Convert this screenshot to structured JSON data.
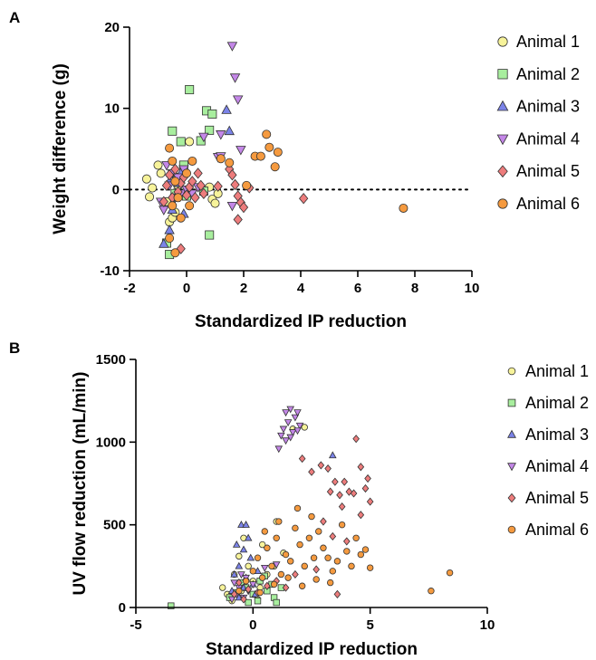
{
  "chart_data": [
    {
      "panel": "A",
      "type": "scatter",
      "xlabel": "Standardized IP reduction",
      "ylabel": "Weight difference (g)",
      "xlim": [
        -2,
        10
      ],
      "ylim": [
        -10,
        20
      ],
      "xticks": [
        "-2",
        "0",
        "2",
        "4",
        "6",
        "8",
        "10"
      ],
      "yticks": [
        "-10",
        "0",
        "10",
        "20"
      ],
      "reference_line": {
        "y": 0,
        "style": "dotted"
      },
      "legend_position": "right",
      "series": [
        {
          "name": "Animal 1",
          "marker": "circle",
          "color": "#f7f39a",
          "points": [
            [
              -1.4,
              1.3
            ],
            [
              -1.3,
              -0.9
            ],
            [
              -1.2,
              0.2
            ],
            [
              -1.0,
              3.0
            ],
            [
              -0.9,
              2.0
            ],
            [
              -0.7,
              -1.5
            ],
            [
              -0.6,
              -4.0
            ],
            [
              -0.5,
              -3.5
            ],
            [
              -0.4,
              -2.8
            ],
            [
              -0.3,
              0.5
            ],
            [
              0.1,
              5.9
            ],
            [
              0.8,
              0.3
            ],
            [
              0.9,
              -1.2
            ],
            [
              1.0,
              -1.7
            ],
            [
              1.1,
              -0.5
            ]
          ]
        },
        {
          "name": "Animal 2",
          "marker": "square",
          "color": "#a8ee9e",
          "points": [
            [
              -0.5,
              7.2
            ],
            [
              -0.2,
              5.9
            ],
            [
              -0.1,
              3.0
            ],
            [
              0.1,
              12.3
            ],
            [
              0.5,
              6.0
            ],
            [
              0.6,
              -0.2
            ],
            [
              0.7,
              9.7
            ],
            [
              0.8,
              7.3
            ],
            [
              0.9,
              9.3
            ],
            [
              0.8,
              -5.6
            ],
            [
              -0.6,
              -8.0
            ],
            [
              -0.7,
              -6.6
            ],
            [
              -0.4,
              -0.5
            ],
            [
              0.0,
              -0.8
            ],
            [
              -0.3,
              1.5
            ]
          ]
        },
        {
          "name": "Animal 3",
          "marker": "triangle-up",
          "color": "#7b83e8",
          "points": [
            [
              -0.8,
              -6.7
            ],
            [
              -0.6,
              -5.0
            ],
            [
              -0.5,
              -2.5
            ],
            [
              -0.4,
              -1.0
            ],
            [
              -0.3,
              0.8
            ],
            [
              -0.2,
              2.0
            ],
            [
              1.4,
              9.8
            ],
            [
              1.5,
              7.2
            ],
            [
              -0.6,
              1.0
            ],
            [
              -0.1,
              -3.0
            ]
          ]
        },
        {
          "name": "Animal 4",
          "marker": "triangle-down",
          "color": "#c487e8",
          "points": [
            [
              -0.9,
              -1.5
            ],
            [
              -0.8,
              -2.5
            ],
            [
              -0.7,
              3.0
            ],
            [
              -0.6,
              0.5
            ],
            [
              -0.5,
              2.0
            ],
            [
              -0.4,
              -1.0
            ],
            [
              -0.3,
              1.5
            ],
            [
              -0.2,
              -0.5
            ],
            [
              -0.1,
              2.5
            ],
            [
              0.0,
              0.0
            ],
            [
              0.2,
              -0.5
            ],
            [
              0.4,
              0.3
            ],
            [
              0.6,
              6.5
            ],
            [
              1.2,
              6.8
            ],
            [
              1.1,
              4.0
            ],
            [
              1.2,
              4.1
            ],
            [
              1.6,
              17.7
            ],
            [
              1.7,
              13.8
            ],
            [
              1.8,
              11.1
            ],
            [
              1.9,
              4.9
            ],
            [
              1.6,
              -2.0
            ]
          ]
        },
        {
          "name": "Animal 5",
          "marker": "diamond",
          "color": "#ed7c7c",
          "points": [
            [
              -0.8,
              -1.5
            ],
            [
              -0.7,
              0.5
            ],
            [
              -0.6,
              1.8
            ],
            [
              -0.5,
              -1.0
            ],
            [
              -0.4,
              2.5
            ],
            [
              -0.3,
              -0.3
            ],
            [
              -0.2,
              0.8
            ],
            [
              -0.1,
              1.5
            ],
            [
              0.0,
              -0.7
            ],
            [
              0.1,
              0.3
            ],
            [
              0.2,
              1.0
            ],
            [
              0.3,
              -1.0
            ],
            [
              0.4,
              2.0
            ],
            [
              0.5,
              0.5
            ],
            [
              0.6,
              -0.5
            ],
            [
              -0.2,
              -7.3
            ],
            [
              1.1,
              0.4
            ],
            [
              1.5,
              2.5
            ],
            [
              1.6,
              1.8
            ],
            [
              1.7,
              0.6
            ],
            [
              1.8,
              -0.8
            ],
            [
              1.9,
              -1.6
            ],
            [
              1.8,
              -3.7
            ],
            [
              2.0,
              -2.2
            ],
            [
              2.2,
              0.2
            ],
            [
              4.1,
              -1.1
            ]
          ]
        },
        {
          "name": "Animal 6",
          "marker": "circle",
          "color": "#f59a3f",
          "points": [
            [
              -0.6,
              5.1
            ],
            [
              -0.5,
              3.5
            ],
            [
              -0.4,
              1.0
            ],
            [
              -0.3,
              -1.0
            ],
            [
              -0.5,
              -2.0
            ],
            [
              -0.6,
              -6.0
            ],
            [
              -0.4,
              -7.8
            ],
            [
              -0.2,
              -3.5
            ],
            [
              0.0,
              2.0
            ],
            [
              0.1,
              -2.0
            ],
            [
              0.2,
              3.5
            ],
            [
              1.2,
              3.8
            ],
            [
              1.5,
              3.3
            ],
            [
              2.1,
              0.5
            ],
            [
              2.4,
              4.1
            ],
            [
              2.6,
              4.1
            ],
            [
              2.8,
              6.8
            ],
            [
              2.9,
              5.2
            ],
            [
              3.1,
              2.8
            ],
            [
              3.2,
              4.6
            ],
            [
              7.6,
              -2.3
            ]
          ]
        }
      ]
    },
    {
      "panel": "B",
      "type": "scatter",
      "xlabel": "Standardized IP reduction",
      "ylabel": "UV flow reduction (mL/min)",
      "xlim": [
        -5,
        10
      ],
      "ylim": [
        0,
        1500
      ],
      "xticks": [
        "-5",
        "0",
        "5",
        "10"
      ],
      "yticks": [
        "0",
        "500",
        "1000",
        "1500"
      ],
      "legend_position": "right",
      "series": [
        {
          "name": "Animal 1",
          "marker": "circle",
          "color": "#f7f39a",
          "points": [
            [
              -1.3,
              120
            ],
            [
              -1.1,
              80
            ],
            [
              -0.8,
              200
            ],
            [
              -0.6,
              310
            ],
            [
              -0.4,
              420
            ],
            [
              -0.2,
              250
            ],
            [
              0.0,
              160
            ],
            [
              0.3,
              120
            ],
            [
              0.6,
              200
            ],
            [
              0.9,
              250
            ],
            [
              1.3,
              330
            ],
            [
              1.7,
              1080
            ],
            [
              2.2,
              1090
            ],
            [
              1.0,
              520
            ],
            [
              0.4,
              380
            ],
            [
              -0.9,
              40
            ],
            [
              -0.5,
              100
            ],
            [
              0.2,
              50
            ]
          ]
        },
        {
          "name": "Animal 2",
          "marker": "square",
          "color": "#a8ee9e",
          "points": [
            [
              -3.5,
              10
            ],
            [
              -1.0,
              60
            ],
            [
              -0.7,
              90
            ],
            [
              -0.5,
              150
            ],
            [
              -0.3,
              120
            ],
            [
              0.0,
              80
            ],
            [
              0.3,
              160
            ],
            [
              0.6,
              100
            ],
            [
              0.9,
              60
            ],
            [
              1.2,
              120
            ],
            [
              0.2,
              40
            ],
            [
              -0.2,
              30
            ],
            [
              0.5,
              190
            ],
            [
              0.8,
              140
            ],
            [
              1.0,
              30
            ]
          ]
        },
        {
          "name": "Animal 3",
          "marker": "triangle-up",
          "color": "#7b83e8",
          "points": [
            [
              -0.9,
              100
            ],
            [
              -0.7,
              380
            ],
            [
              -0.6,
              250
            ],
            [
              -0.5,
              500
            ],
            [
              -0.4,
              350
            ],
            [
              -0.3,
              180
            ],
            [
              -0.2,
              420
            ],
            [
              -0.1,
              300
            ],
            [
              0.0,
              140
            ],
            [
              0.2,
              220
            ],
            [
              -0.8,
              200
            ],
            [
              -0.6,
              60
            ],
            [
              -0.4,
              120
            ],
            [
              0.1,
              80
            ],
            [
              3.4,
              920
            ],
            [
              -0.3,
              500
            ]
          ]
        },
        {
          "name": "Animal 4",
          "marker": "triangle-down",
          "color": "#c487e8",
          "points": [
            [
              -0.9,
              50
            ],
            [
              -0.8,
              150
            ],
            [
              -0.7,
              80
            ],
            [
              -0.6,
              120
            ],
            [
              -0.5,
              200
            ],
            [
              -0.4,
              60
            ],
            [
              -0.3,
              180
            ],
            [
              -0.2,
              100
            ],
            [
              0.0,
              140
            ],
            [
              0.5,
              240
            ],
            [
              1.0,
              260
            ],
            [
              1.1,
              960
            ],
            [
              1.2,
              1040
            ],
            [
              1.3,
              1080
            ],
            [
              1.4,
              1010
            ],
            [
              1.5,
              1120
            ],
            [
              1.6,
              1200
            ],
            [
              1.7,
              1060
            ],
            [
              1.8,
              1150
            ],
            [
              1.9,
              1180
            ],
            [
              2.0,
              1100
            ],
            [
              1.4,
              1180
            ],
            [
              1.6,
              1030
            ],
            [
              1.9,
              1070
            ]
          ]
        },
        {
          "name": "Animal 5",
          "marker": "diamond",
          "color": "#ed7c7c",
          "points": [
            [
              -0.8,
              80
            ],
            [
              -0.6,
              150
            ],
            [
              -0.4,
              50
            ],
            [
              -0.2,
              110
            ],
            [
              0.2,
              90
            ],
            [
              0.6,
              130
            ],
            [
              1.0,
              160
            ],
            [
              1.4,
              120
            ],
            [
              1.8,
              200
            ],
            [
              2.1,
              900
            ],
            [
              2.5,
              820
            ],
            [
              2.9,
              860
            ],
            [
              3.2,
              840
            ],
            [
              3.3,
              700
            ],
            [
              3.5,
              760
            ],
            [
              3.7,
              680
            ],
            [
              3.9,
              760
            ],
            [
              4.1,
              700
            ],
            [
              4.3,
              690
            ],
            [
              4.4,
              1020
            ],
            [
              4.6,
              850
            ],
            [
              4.9,
              780
            ],
            [
              5.0,
              640
            ],
            [
              3.6,
              80
            ],
            [
              4.0,
              400
            ],
            [
              4.6,
              560
            ],
            [
              2.7,
              230
            ],
            [
              3.0,
              520
            ],
            [
              3.8,
              610
            ],
            [
              3.4,
              430
            ],
            [
              4.8,
              720
            ]
          ]
        },
        {
          "name": "Animal 6",
          "marker": "circle",
          "color": "#f59a3f",
          "points": [
            [
              -0.6,
              100
            ],
            [
              -0.3,
              160
            ],
            [
              0.0,
              220
            ],
            [
              0.2,
              300
            ],
            [
              0.4,
              180
            ],
            [
              0.6,
              360
            ],
            [
              0.8,
              250
            ],
            [
              1.0,
              420
            ],
            [
              1.2,
              200
            ],
            [
              1.4,
              320
            ],
            [
              1.6,
              280
            ],
            [
              1.8,
              480
            ],
            [
              2.0,
              380
            ],
            [
              2.2,
              250
            ],
            [
              2.4,
              420
            ],
            [
              2.6,
              300
            ],
            [
              2.8,
              460
            ],
            [
              3.0,
              360
            ],
            [
              3.2,
              300
            ],
            [
              3.4,
              220
            ],
            [
              3.6,
              280
            ],
            [
              3.8,
              500
            ],
            [
              4.0,
              340
            ],
            [
              4.2,
              250
            ],
            [
              4.4,
              420
            ],
            [
              4.6,
              320
            ],
            [
              4.8,
              350
            ],
            [
              5.0,
              240
            ],
            [
              0.3,
              90
            ],
            [
              0.9,
              140
            ],
            [
              1.5,
              180
            ],
            [
              2.1,
              130
            ],
            [
              2.7,
              170
            ],
            [
              3.3,
              150
            ],
            [
              0.5,
              460
            ],
            [
              1.1,
              520
            ],
            [
              1.9,
              600
            ],
            [
              2.5,
              550
            ],
            [
              7.6,
              100
            ],
            [
              8.4,
              210
            ]
          ]
        }
      ]
    }
  ]
}
